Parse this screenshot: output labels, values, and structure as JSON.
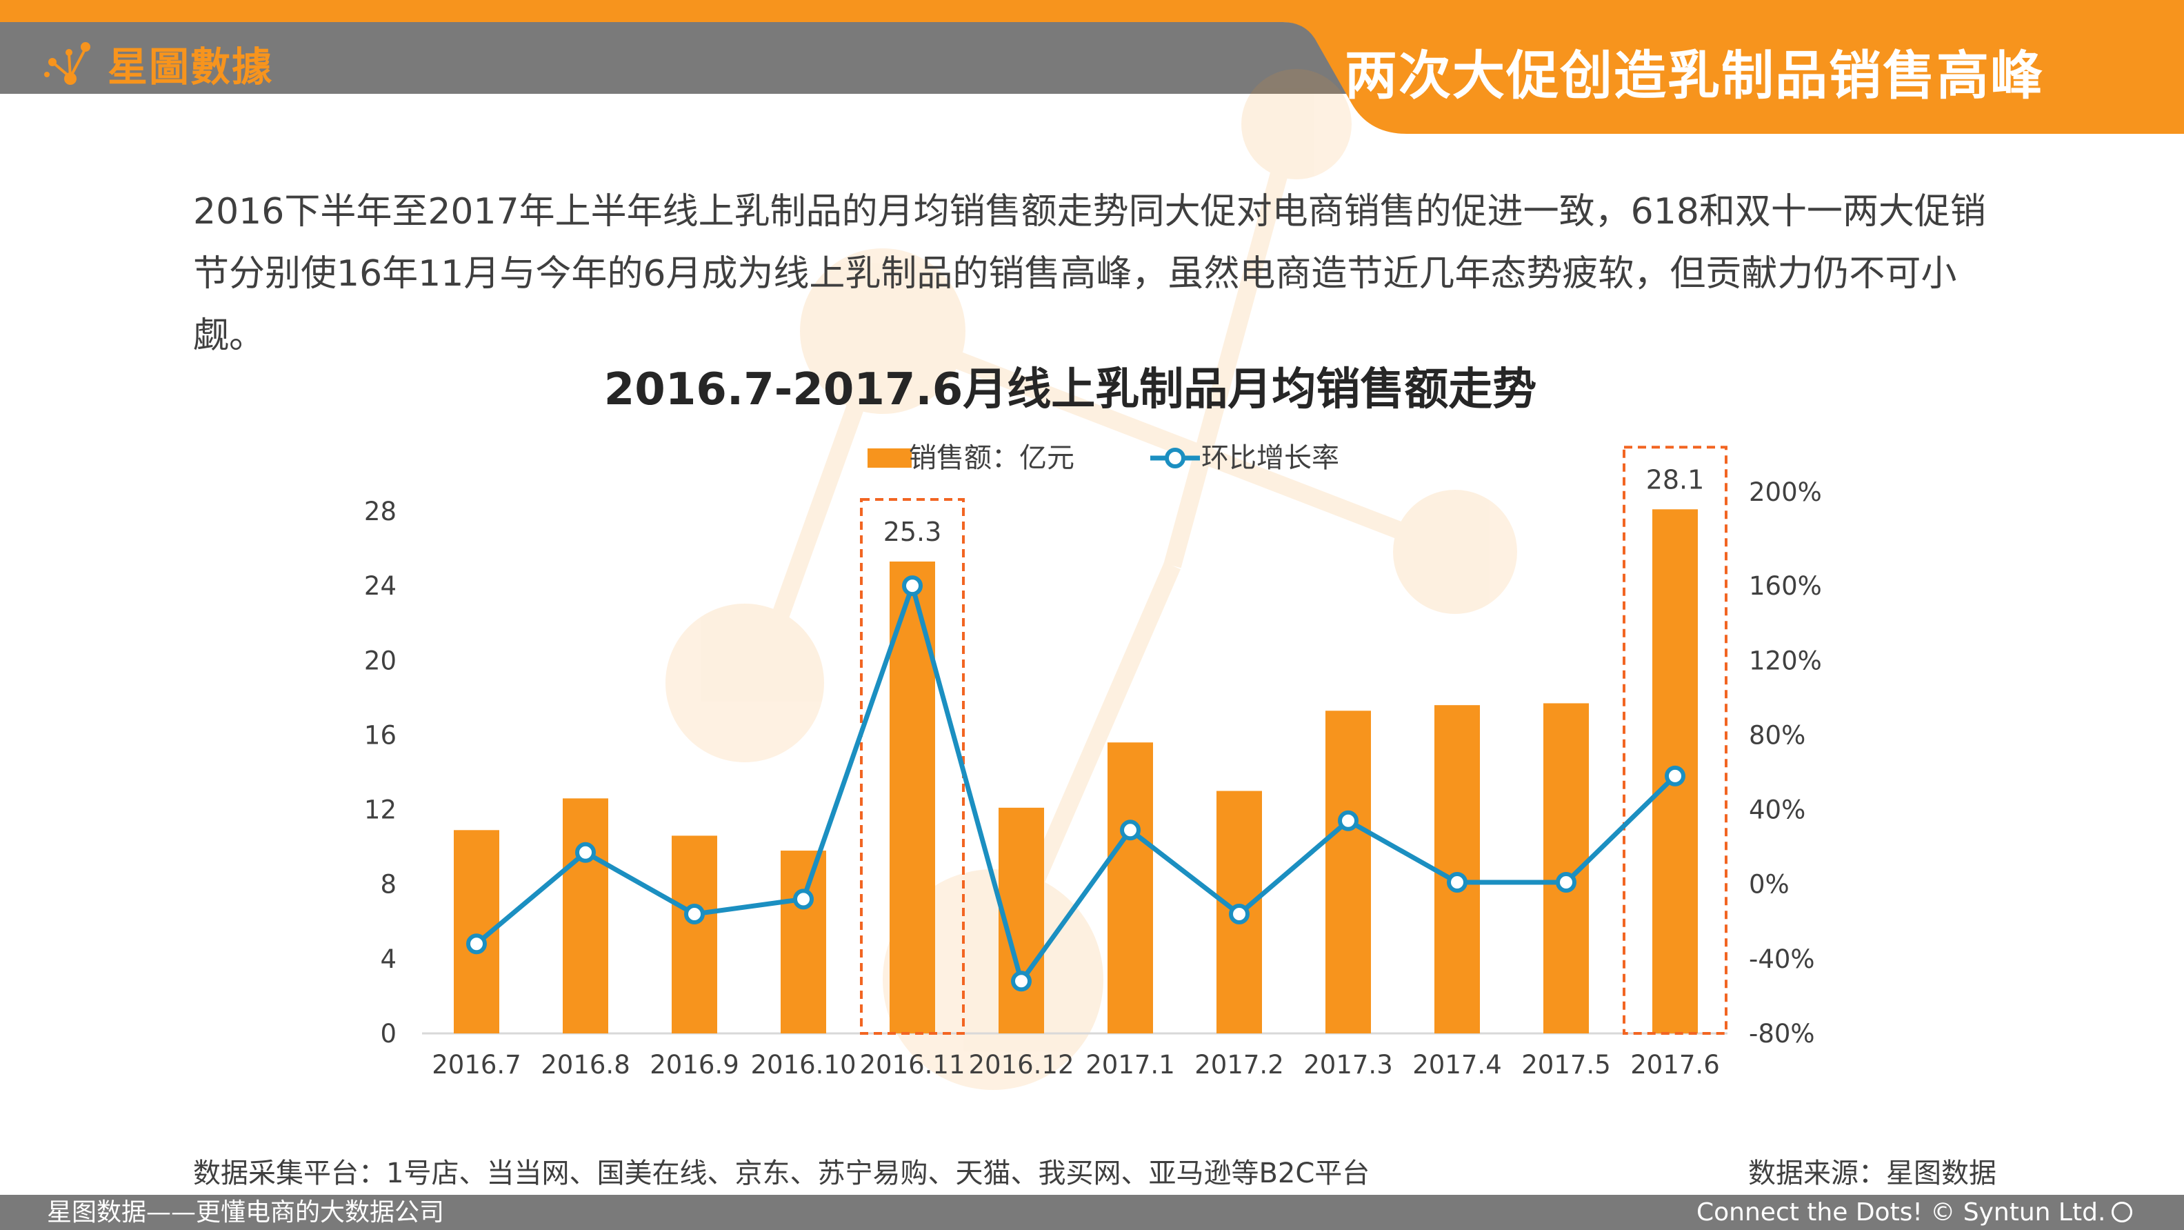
{
  "header": {
    "logo_text": "星圖數據",
    "title": "两次大促创造乳制品销售高峰"
  },
  "summary": "2016下半年至2017年上半年线上乳制品的月均销售额走势同大促对电商销售的促进一致，618和双十一两大促销节分别使16年11月与今年的6月成为线上乳制品的销售高峰，虽然电商造节近几年态势疲软，但贡献力仍不可小觑。",
  "colors": {
    "brand_orange": "#f7941d",
    "bar": "#f7941d",
    "line": "#1b8fc1",
    "header_gray": "#7a7a7a",
    "highlight_box": "#f26522"
  },
  "chart_data": {
    "type": "bar+line",
    "title": "2016.7-2017.6月线上乳制品月均销售额走势",
    "categories": [
      "2016.7",
      "2016.8",
      "2016.9",
      "2016.10",
      "2016.11",
      "2016.12",
      "2017.1",
      "2017.2",
      "2017.3",
      "2017.4",
      "2017.5",
      "2017.6"
    ],
    "series": [
      {
        "name": "销售额：亿元",
        "type": "bar",
        "axis": "left",
        "values": [
          10.9,
          12.6,
          10.6,
          9.8,
          25.3,
          12.1,
          15.6,
          13.0,
          17.3,
          17.6,
          17.7,
          28.1
        ]
      },
      {
        "name": "环比增长率",
        "type": "line",
        "axis": "right",
        "values": [
          -32,
          17,
          -16,
          -8,
          160,
          -52,
          29,
          -16,
          34,
          1,
          1,
          58
        ]
      }
    ],
    "y_left": {
      "min": 0,
      "max": 28,
      "ticks": [
        "0",
        "4",
        "8",
        "12",
        "16",
        "20",
        "24",
        "28"
      ]
    },
    "y_right": {
      "min": -80,
      "max": 200,
      "ticks": [
        "-80%",
        "-40%",
        "0%",
        "40%",
        "80%",
        "120%",
        "160%",
        "200%"
      ]
    },
    "data_labels": [
      {
        "category_index": 4,
        "text": "25.3"
      },
      {
        "category_index": 11,
        "text": "28.1"
      }
    ],
    "highlighted_categories": [
      4,
      11
    ],
    "legend_position": "top-center"
  },
  "footer": {
    "source_platforms": "数据采集平台：1号店、当当网、国美在线、京东、苏宁易购、天猫、我买网、亚马逊等B2C平台",
    "data_source": "数据来源：星图数据"
  },
  "bottom_bar": {
    "left_text": "星图数据——更懂电商的大数据公司",
    "right_text": "Connect the Dots! © Syntun Ltd."
  }
}
